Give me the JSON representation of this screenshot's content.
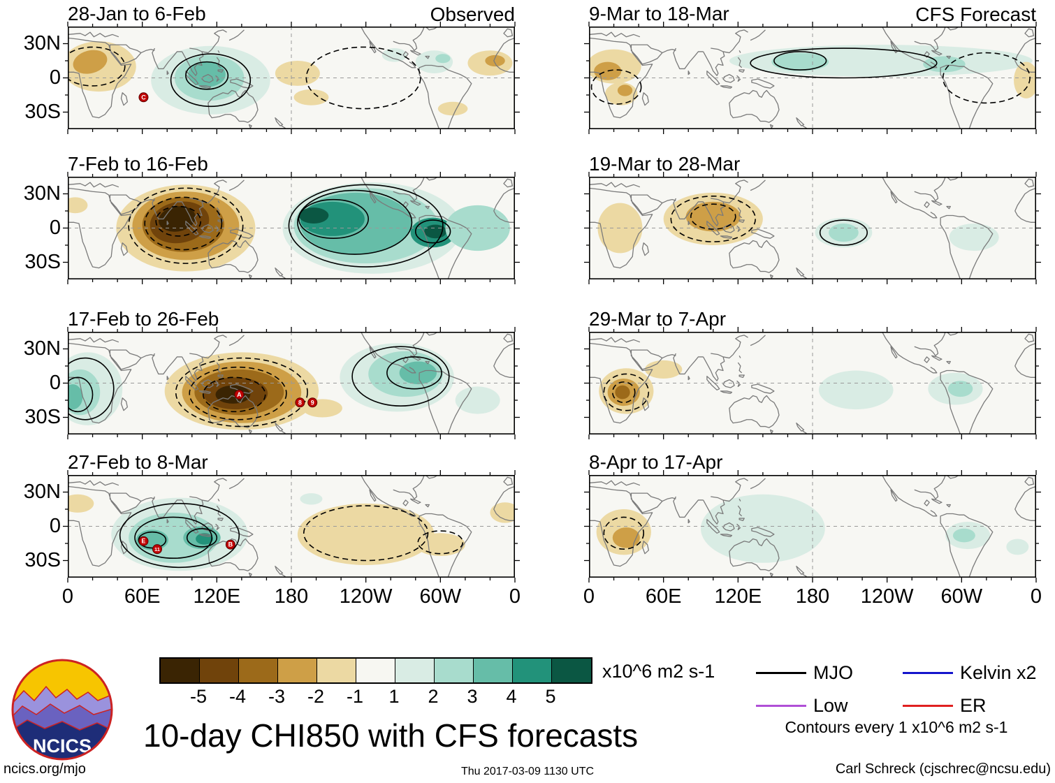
{
  "title": "10-day CHI850 with CFS forecasts",
  "header": {
    "observed": "Observed",
    "forecast": "CFS Forecast"
  },
  "logo_text": "NCICS",
  "footer": {
    "left": "ncics.org/mjo",
    "center": "Thu 2017-03-09 1130 UTC",
    "right": "Carl Schreck (cjschrec@ncsu.edu)"
  },
  "axes": {
    "y_ticks": [
      "30N",
      "0",
      "30S"
    ],
    "x_ticks": [
      "0",
      "60E",
      "120E",
      "180",
      "120W",
      "60W",
      "0"
    ]
  },
  "colorbar": {
    "units": "x10^6 m2 s-1",
    "tick_labels": [
      "-5",
      "-4",
      "-3",
      "-2",
      "-1",
      "1",
      "2",
      "3",
      "4",
      "5"
    ],
    "segment_colors": [
      "#3a2403",
      "#70430b",
      "#9c6a1a",
      "#ce9f47",
      "#ecd9a3",
      "#f7f7f2",
      "#d9ece4",
      "#a8dccd",
      "#66bda8",
      "#22927a",
      "#0b5743"
    ]
  },
  "legend": {
    "items": [
      {
        "label": "MJO",
        "color": "#000000"
      },
      {
        "label": "Kelvin x2",
        "color": "#1515cc"
      },
      {
        "label": "Low",
        "color": "#b04fd6"
      },
      {
        "label": "ER",
        "color": "#e02020"
      }
    ],
    "note": "Contours every 1 x10^6 m2 s-1"
  },
  "chart_data": {
    "type": "heatmap",
    "variable": "10-day mean CHI850 (850 hPa velocity potential) anomaly",
    "units": "x10^6 m2 s-1",
    "contour_interval": "1 x10^6 m2 s-1",
    "lon_range": [
      0,
      360
    ],
    "lat_range": [
      -45,
      45
    ],
    "level_colors": {
      "-5": "#3a2403",
      "-4": "#70430b",
      "-3": "#9c6a1a",
      "-2": "#ce9f47",
      "-1": "#ecd9a3",
      "1": "#d9ece4",
      "2": "#a8dccd",
      "3": "#66bda8",
      "4": "#22927a",
      "5": "#0b5743"
    },
    "shading_format": [
      "center_lon_degE",
      "center_lat_deg",
      "rx_deg",
      "ry_deg",
      "rotation_deg",
      "anomaly_level"
    ],
    "contour_format": [
      "center_lon_degE",
      "center_lat_deg",
      "rx_deg",
      "ry_deg",
      "style_s_solid_d_dashed"
    ],
    "marker_format": [
      "lon_degE",
      "lat_deg",
      "label"
    ],
    "panels": [
      {
        "title": "28-Jan to 6-Feb",
        "column": "Observed",
        "shading": [
          [
            25,
            10,
            30,
            22,
            0,
            -1
          ],
          [
            18,
            14,
            14,
            10,
            -15,
            -2
          ],
          [
            115,
            -2,
            48,
            30,
            0,
            1
          ],
          [
            114,
            0,
            28,
            20,
            0,
            2
          ],
          [
            112,
            3,
            15,
            11,
            0,
            3
          ],
          [
            185,
            4,
            18,
            11,
            0,
            -1
          ],
          [
            196,
            -17,
            14,
            7,
            0,
            -1
          ],
          [
            295,
            14,
            15,
            10,
            0,
            1
          ],
          [
            302,
            17,
            6,
            4,
            0,
            2
          ],
          [
            263,
            20,
            10,
            6,
            0,
            1
          ],
          [
            340,
            13,
            18,
            11,
            0,
            -1
          ],
          [
            344,
            15,
            8,
            5,
            0,
            -2
          ],
          [
            310,
            -27,
            12,
            6,
            0,
            -1
          ]
        ],
        "contours": [
          [
            115,
            -2,
            32,
            23,
            "s"
          ],
          [
            112,
            2,
            17,
            12,
            "s"
          ],
          [
            238,
            0,
            46,
            27,
            "d"
          ],
          [
            20,
            10,
            26,
            17,
            "d"
          ]
        ],
        "markers": [
          [
            61,
            -17,
            "C"
          ]
        ]
      },
      {
        "title": "7-Feb to 16-Feb",
        "column": "Observed",
        "shading": [
          [
            95,
            0,
            56,
            38,
            0,
            -1
          ],
          [
            95,
            2,
            43,
            30,
            0,
            -2
          ],
          [
            93,
            3,
            33,
            24,
            0,
            -3
          ],
          [
            90,
            5,
            24,
            18,
            -10,
            -4
          ],
          [
            88,
            8,
            15,
            11,
            -10,
            -5
          ],
          [
            6,
            20,
            10,
            7,
            0,
            -1
          ],
          [
            245,
            0,
            72,
            40,
            0,
            1
          ],
          [
            240,
            2,
            58,
            33,
            0,
            2
          ],
          [
            232,
            4,
            45,
            27,
            0,
            3
          ],
          [
            213,
            8,
            26,
            15,
            0,
            4
          ],
          [
            198,
            11,
            12,
            7,
            0,
            5
          ],
          [
            294,
            -4,
            18,
            13,
            0,
            4
          ],
          [
            296,
            -3,
            9,
            6,
            0,
            5
          ],
          [
            330,
            0,
            26,
            20,
            0,
            2
          ]
        ],
        "contours": [
          [
            95,
            2,
            46,
            33,
            "d"
          ],
          [
            93,
            4,
            31,
            23,
            "d"
          ],
          [
            89,
            6,
            18,
            13,
            "d"
          ],
          [
            240,
            2,
            62,
            36,
            "s"
          ],
          [
            231,
            5,
            46,
            28,
            "s"
          ],
          [
            214,
            8,
            28,
            17,
            "s"
          ],
          [
            294,
            -3,
            14,
            10,
            "s"
          ]
        ],
        "markers": []
      },
      {
        "title": "17-Feb to 26-Feb",
        "column": "Observed",
        "shading": [
          [
            16,
            -5,
            28,
            32,
            0,
            1
          ],
          [
            10,
            -8,
            16,
            20,
            0,
            2
          ],
          [
            4,
            -12,
            8,
            11,
            0,
            3
          ],
          [
            140,
            -7,
            62,
            34,
            0,
            -1
          ],
          [
            140,
            -8,
            48,
            27,
            0,
            -2
          ],
          [
            138,
            -8,
            36,
            20,
            0,
            -3
          ],
          [
            135,
            -9,
            26,
            14,
            0,
            -4
          ],
          [
            133,
            -10,
            14,
            8,
            0,
            -5
          ],
          [
            265,
            5,
            46,
            30,
            0,
            1
          ],
          [
            272,
            8,
            30,
            20,
            0,
            2
          ],
          [
            282,
            9,
            15,
            10,
            0,
            3
          ],
          [
            330,
            -15,
            18,
            12,
            0,
            1
          ],
          [
            205,
            -22,
            16,
            8,
            0,
            -1
          ]
        ],
        "contours": [
          [
            14,
            -5,
            23,
            27,
            "s"
          ],
          [
            8,
            -10,
            12,
            15,
            "s"
          ],
          [
            140,
            -8,
            53,
            30,
            "d"
          ],
          [
            137,
            -9,
            39,
            23,
            "d"
          ],
          [
            134,
            -10,
            25,
            15,
            "d"
          ],
          [
            268,
            6,
            39,
            26,
            "s"
          ],
          [
            279,
            9,
            22,
            14,
            "s"
          ]
        ],
        "markers": [
          [
            138,
            -10,
            "A"
          ],
          [
            187,
            -17,
            "8"
          ],
          [
            197,
            -17,
            "9"
          ]
        ]
      },
      {
        "title": "27-Feb to 8-Mar",
        "column": "Observed",
        "shading": [
          [
            90,
            -7,
            55,
            32,
            0,
            1
          ],
          [
            85,
            -10,
            36,
            22,
            0,
            2
          ],
          [
            68,
            -12,
            13,
            9,
            0,
            3
          ],
          [
            108,
            -10,
            15,
            10,
            0,
            3
          ],
          [
            110,
            -11,
            7,
            5,
            0,
            4
          ],
          [
            8,
            20,
            13,
            8,
            0,
            -1
          ],
          [
            240,
            -7,
            55,
            27,
            0,
            -1
          ],
          [
            300,
            -16,
            20,
            10,
            0,
            -1
          ],
          [
            196,
            24,
            9,
            5,
            0,
            1
          ],
          [
            352,
            12,
            12,
            9,
            0,
            -1
          ]
        ],
        "contours": [
          [
            90,
            -8,
            48,
            28,
            "s"
          ],
          [
            85,
            -10,
            31,
            18,
            "s"
          ],
          [
            68,
            -12,
            11,
            7,
            "s"
          ],
          [
            108,
            -10,
            12,
            8,
            "s"
          ],
          [
            240,
            -6,
            50,
            24,
            "d"
          ],
          [
            300,
            -14,
            18,
            10,
            "d"
          ]
        ],
        "markers": [
          [
            61,
            -13,
            "E"
          ],
          [
            72,
            -20,
            "11"
          ],
          [
            131,
            -16,
            "B"
          ]
        ]
      },
      {
        "title": "9-Mar to 18-Mar",
        "column": "CFS Forecast",
        "shading": [
          [
            20,
            10,
            22,
            15,
            0,
            -1
          ],
          [
            15,
            6,
            11,
            8,
            0,
            -2
          ],
          [
            26,
            -14,
            13,
            10,
            0,
            -1
          ],
          [
            29,
            -11,
            6,
            5,
            0,
            -2
          ],
          [
            235,
            15,
            122,
            14,
            0,
            1
          ],
          [
            170,
            14,
            23,
            8,
            0,
            2
          ],
          [
            286,
            12,
            17,
            7,
            0,
            2
          ],
          [
            352,
            -2,
            10,
            16,
            0,
            -1
          ]
        ],
        "contours": [
          [
            205,
            13,
            75,
            13,
            "s"
          ],
          [
            170,
            15,
            21,
            8,
            "s"
          ],
          [
            320,
            0,
            35,
            22,
            "d"
          ],
          [
            22,
            -8,
            20,
            15,
            "d"
          ]
        ],
        "markers": []
      },
      {
        "title": "19-Mar to 28-Mar",
        "column": "CFS Forecast",
        "shading": [
          [
            100,
            8,
            40,
            23,
            0,
            -1
          ],
          [
            100,
            10,
            22,
            13,
            0,
            -2
          ],
          [
            25,
            0,
            18,
            22,
            0,
            -1
          ],
          [
            205,
            -4,
            23,
            13,
            0,
            1
          ],
          [
            205,
            -4,
            12,
            8,
            0,
            2
          ],
          [
            310,
            -8,
            20,
            12,
            0,
            1
          ]
        ],
        "contours": [
          [
            100,
            8,
            34,
            20,
            "d"
          ],
          [
            100,
            10,
            18,
            11,
            "d"
          ],
          [
            205,
            -4,
            19,
            11,
            "s"
          ]
        ],
        "markers": []
      },
      {
        "title": "29-Mar to 7-Apr",
        "column": "CFS Forecast",
        "shading": [
          [
            30,
            -7,
            22,
            20,
            0,
            -1
          ],
          [
            28,
            -8,
            13,
            12,
            0,
            -2
          ],
          [
            27,
            -8,
            6,
            6,
            0,
            -3
          ],
          [
            60,
            12,
            15,
            8,
            0,
            -1
          ],
          [
            215,
            -6,
            30,
            17,
            0,
            1
          ],
          [
            295,
            -5,
            22,
            14,
            0,
            1
          ],
          [
            299,
            -5,
            10,
            7,
            0,
            2
          ]
        ],
        "contours": [
          [
            30,
            -8,
            18,
            16,
            "d"
          ],
          [
            28,
            -8,
            9,
            9,
            "d"
          ]
        ],
        "markers": []
      },
      {
        "title": "8-Apr to 17-Apr",
        "column": "CFS Forecast",
        "shading": [
          [
            28,
            -5,
            22,
            20,
            0,
            -1
          ],
          [
            30,
            -10,
            11,
            9,
            0,
            -2
          ],
          [
            140,
            -2,
            50,
            30,
            0,
            1
          ],
          [
            305,
            -8,
            18,
            12,
            0,
            1
          ],
          [
            302,
            -8,
            9,
            6,
            0,
            2
          ],
          [
            345,
            -18,
            9,
            7,
            0,
            1
          ]
        ],
        "contours": [
          [
            28,
            -6,
            16,
            14,
            "d"
          ]
        ],
        "markers": []
      }
    ]
  }
}
